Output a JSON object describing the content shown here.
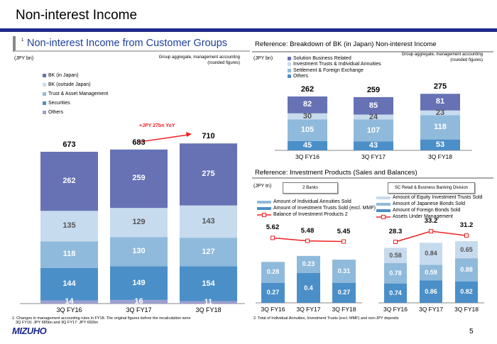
{
  "page": {
    "title": "Non-interest Income",
    "page_number": "5",
    "logo": "MIZUHO"
  },
  "left": {
    "section_title": "Non-interest Income from Customer Groups",
    "superscript": "1",
    "unit": "(JPY bn)",
    "note1": "Group aggregate, management accounting",
    "note2": "(rounded figures)",
    "yoy_annotation": "+JPY 27bn YoY",
    "footnote1": "1. Changes in management accounting rules in FY18. The original figures before the recalculation were",
    "footnote2": "3Q FY16: JPY 685bn and 3Q FY17: JPY 692bn"
  },
  "ref1": {
    "title": "Reference: Breakdown of BK (in Japan) Non-interest Income",
    "unit": "(JPY bn)",
    "note1": "Group aggregate, management accounting",
    "note2": "(rounded figures)"
  },
  "ref2": {
    "title": "Reference: Investment Products (Sales and Balances)",
    "unit": "(JPY tn)",
    "box_left": "2 Banks",
    "box_right": "SC Retail & Business Banking Division",
    "footnote": "2. Total of Individual Annuities, Investment Trusts (excl. MMF) and non-JPY deposits"
  },
  "chart_data": [
    {
      "type": "bar",
      "stacked": true,
      "categories": [
        "3Q FY16",
        "3Q FY17",
        "3Q FY18"
      ],
      "totals": [
        673,
        683,
        710
      ],
      "series": [
        {
          "name": "Others",
          "values": [
            14,
            16,
            11
          ],
          "color": "#9da0cf"
        },
        {
          "name": "Securities",
          "values": [
            144,
            149,
            154
          ],
          "color": "#4b8fc8"
        },
        {
          "name": "Trust & Asset Management",
          "values": [
            118,
            130,
            127
          ],
          "color": "#8fbadb"
        },
        {
          "name": "BK (outside Japan)",
          "values": [
            135,
            129,
            143
          ],
          "color": "#c7dbee"
        },
        {
          "name": "BK (in Japan)",
          "values": [
            262,
            259,
            275
          ],
          "color": "#6672b4"
        }
      ]
    },
    {
      "type": "bar",
      "stacked": true,
      "categories": [
        "3Q FY16",
        "3Q FY17",
        "3Q FY18"
      ],
      "totals": [
        262,
        259,
        275
      ],
      "series": [
        {
          "name": "Others",
          "values": [
            45,
            43,
            53
          ],
          "color": "#4b8fc8"
        },
        {
          "name": "Settlement & Foreign Exchange",
          "values": [
            105,
            107,
            118
          ],
          "color": "#8fbadb"
        },
        {
          "name": "Investment Trusts & Individual Annuities",
          "values": [
            30,
            24,
            23
          ],
          "color": "#c7dbee"
        },
        {
          "name": "Solution Business Related",
          "values": [
            82,
            85,
            81
          ],
          "color": "#6672b4"
        }
      ]
    },
    {
      "type": "bar",
      "stacked": true,
      "categories": [
        "3Q FY16",
        "3Q FY17",
        "3Q FY18"
      ],
      "series": [
        {
          "name": "Amount of Investment Trusts Sold (excl. MMF)",
          "values": [
            0.27,
            0.4,
            0.27
          ],
          "color": "#4b8fc8"
        },
        {
          "name": "Amount of Individual Annuities Sold",
          "values": [
            0.28,
            0.23,
            0.31
          ],
          "color": "#8fbadb"
        }
      ],
      "line": {
        "name": "Balance of Investment Products",
        "superscript": "2",
        "values": [
          5.62,
          5.48,
          5.45
        ],
        "color": "#ee2222"
      }
    },
    {
      "type": "bar",
      "stacked": true,
      "categories": [
        "3Q FY16",
        "3Q FY17",
        "3Q FY18"
      ],
      "series": [
        {
          "name": "Amount of Foreign Bonds Sold",
          "values": [
            0.74,
            0.86,
            0.82
          ],
          "color": "#4b8fc8"
        },
        {
          "name": "Amount of Japanese Bonds Sold",
          "values": [
            0.78,
            0.59,
            0.88
          ],
          "color": "#8fbadb"
        },
        {
          "name": "Amount of Equity Investment Trusts Sold",
          "values": [
            0.58,
            0.84,
            0.65
          ],
          "color": "#c7dbee"
        }
      ],
      "line": {
        "name": "Assets Under Management",
        "values": [
          28.3,
          33.2,
          31.2
        ],
        "color": "#ee2222"
      }
    }
  ]
}
